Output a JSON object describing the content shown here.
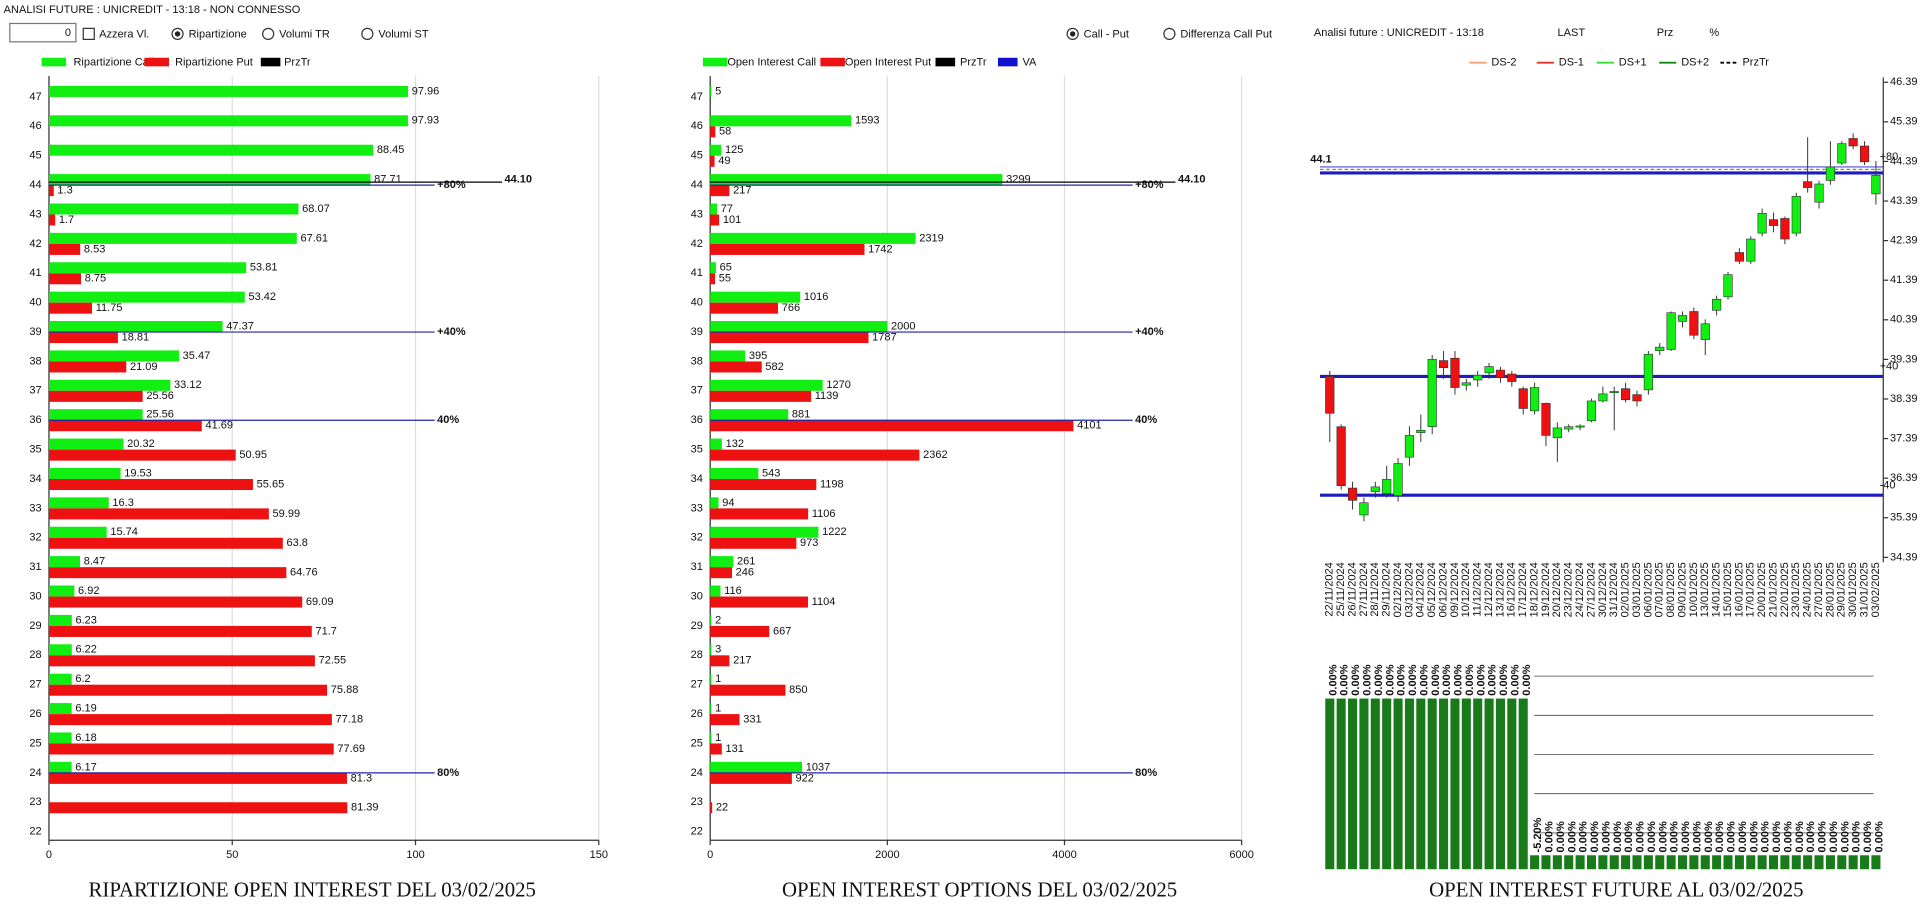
{
  "header": {
    "status": "ANALISI FUTURE : UNICREDIT - 13:18 - NON CONNESSO",
    "input": "0",
    "toolbar": [
      {
        "kind": "checkbox",
        "label": "Azzera Vl.",
        "checked": false
      },
      {
        "kind": "radio",
        "label": "Ripartizione",
        "checked": true
      },
      {
        "kind": "radio",
        "label": "Volumi TR",
        "checked": false
      },
      {
        "kind": "radio",
        "label": "Volumi ST",
        "checked": false
      },
      {
        "kind": "radio",
        "label": "Call - Put",
        "checked": true
      },
      {
        "kind": "radio",
        "label": "Differenza Call Put",
        "checked": false
      }
    ]
  },
  "chart_data": [
    {
      "type": "hbar",
      "title": "RIPARTIZIONE OPEN INTEREST DEL 03/02/2025",
      "categories": [
        47,
        46,
        45,
        44,
        43,
        42,
        41,
        40,
        39,
        38,
        37,
        36,
        35,
        34,
        33,
        32,
        31,
        30,
        29,
        28,
        27,
        26,
        25,
        24,
        23,
        22
      ],
      "series": [
        {
          "name": "Ripartizione Call",
          "color": "#11ee11",
          "values": [
            97.96,
            97.93,
            88.45,
            87.71,
            68.07,
            67.61,
            53.81,
            53.42,
            47.37,
            35.47,
            33.12,
            25.56,
            20.32,
            19.53,
            16.3,
            15.74,
            8.47,
            6.92,
            6.23,
            6.22,
            6.2,
            6.19,
            6.18,
            6.17,
            null,
            null
          ]
        },
        {
          "name": "Ripartizione Put",
          "color": "#ee1111",
          "values": [
            null,
            null,
            null,
            1.3,
            1.7,
            8.53,
            8.75,
            11.75,
            18.81,
            21.09,
            25.56,
            41.69,
            50.95,
            55.65,
            59.99,
            63.8,
            64.76,
            69.09,
            71.7,
            72.55,
            75.88,
            77.18,
            77.69,
            81.3,
            81.39,
            null
          ]
        }
      ],
      "legend_extra": [
        {
          "name": "PrzTr",
          "color": "#000000"
        }
      ],
      "xlim": [
        0,
        150
      ],
      "xticks": [
        0,
        50,
        100,
        150
      ],
      "grid": true,
      "levels": [
        {
          "at": 44,
          "label": "+80%"
        },
        {
          "at": 39,
          "label": "+40%"
        },
        {
          "at": 36,
          "label": "40%"
        },
        {
          "at": 24,
          "label": "80%"
        }
      ],
      "price_line": {
        "value": 44.1,
        "label": "44.10"
      }
    },
    {
      "type": "hbar",
      "title": "OPEN INTEREST OPTIONS DEL 03/02/2025",
      "categories": [
        47,
        46,
        45,
        44,
        43,
        42,
        41,
        40,
        39,
        38,
        37,
        36,
        35,
        34,
        33,
        32,
        31,
        30,
        29,
        28,
        27,
        26,
        25,
        24,
        23,
        22
      ],
      "series": [
        {
          "name": "Open Interest Call",
          "color": "#11ee11",
          "values": [
            5,
            1593,
            125,
            3299,
            77,
            2319,
            65,
            1016,
            2000,
            395,
            1270,
            881,
            132,
            543,
            94,
            1222,
            261,
            116,
            2,
            3,
            1,
            1,
            1,
            1037,
            null,
            null
          ]
        },
        {
          "name": "Open Interest Put",
          "color": "#ee1111",
          "values": [
            null,
            58,
            49,
            217,
            101,
            1742,
            55,
            766,
            1787,
            582,
            1139,
            4101,
            2362,
            1198,
            1106,
            973,
            246,
            1104,
            667,
            217,
            850,
            331,
            131,
            922,
            22,
            null
          ]
        }
      ],
      "legend_extra": [
        {
          "name": "PrzTr",
          "color": "#000000"
        },
        {
          "name": "VA",
          "color": "#1111cc"
        }
      ],
      "xlim": [
        0,
        6000
      ],
      "xticks": [
        0,
        2000,
        4000,
        6000
      ],
      "grid": true,
      "levels": [
        {
          "at": 44,
          "label": "+80%"
        },
        {
          "at": 39,
          "label": "+40%"
        },
        {
          "at": 36,
          "label": "40%"
        },
        {
          "at": 24,
          "label": "80%"
        }
      ],
      "price_line": {
        "value": 44.1,
        "label": "44.10"
      }
    },
    {
      "type": "candlestick",
      "header": [
        "Analisi future : UNICREDIT - 13:18",
        "LAST",
        "Prz",
        "%"
      ],
      "legend": [
        {
          "name": "DS-2",
          "color": "#f4a07a",
          "dashed": false
        },
        {
          "name": "DS-1",
          "color": "#e33030",
          "dashed": false
        },
        {
          "name": "DS+1",
          "color": "#33dd33",
          "dashed": false
        },
        {
          "name": "DS+2",
          "color": "#118811",
          "dashed": false
        },
        {
          "name": "PrzTr",
          "color": "#000000",
          "dashed": true
        }
      ],
      "up_color": "#11ee11",
      "down_color": "#ee1111",
      "dates": [
        "22/11/2024",
        "25/11/2024",
        "26/11/2024",
        "27/11/2024",
        "28/11/2024",
        "29/11/2024",
        "02/12/2024",
        "03/12/2024",
        "04/12/2024",
        "05/12/2024",
        "06/12/2024",
        "09/12/2024",
        "10/12/2024",
        "11/12/2024",
        "12/12/2024",
        "13/12/2024",
        "16/12/2024",
        "17/12/2024",
        "18/12/2024",
        "19/12/2024",
        "20/12/2024",
        "23/12/2024",
        "24/12/2024",
        "27/12/2024",
        "30/12/2024",
        "31/12/2024",
        "02/01/2025",
        "03/01/2025",
        "06/01/2025",
        "07/01/2025",
        "08/01/2025",
        "09/01/2025",
        "10/01/2025",
        "13/01/2025",
        "14/01/2025",
        "15/01/2025",
        "16/01/2025",
        "17/01/2025",
        "20/01/2025",
        "21/01/2025",
        "22/01/2025",
        "23/01/2025",
        "24/01/2025",
        "27/01/2025",
        "28/01/2025",
        "29/01/2025",
        "30/01/2025",
        "31/01/2025",
        "03/02/2025"
      ],
      "open": [
        38.96,
        37.69,
        36.14,
        35.46,
        36.05,
        36.0,
        35.95,
        36.92,
        37.54,
        37.69,
        39.36,
        39.42,
        38.74,
        38.87,
        39.05,
        39.12,
        39.02,
        38.65,
        38.09,
        38.28,
        37.41,
        37.63,
        37.68,
        37.84,
        38.34,
        38.55,
        38.65,
        38.5,
        38.62,
        39.61,
        39.64,
        40.35,
        40.6,
        39.89,
        40.63,
        40.97,
        42.09,
        41.87,
        42.58,
        42.92,
        42.95,
        42.58,
        43.88,
        43.36,
        43.91,
        44.35,
        44.97,
        44.78,
        43.57
      ],
      "high": [
        39.1,
        37.75,
        36.3,
        35.9,
        36.3,
        36.7,
        36.9,
        37.7,
        38.0,
        39.5,
        39.6,
        39.6,
        38.9,
        39.1,
        39.3,
        39.2,
        39.1,
        38.7,
        38.8,
        38.3,
        37.8,
        37.75,
        37.75,
        38.4,
        38.7,
        38.7,
        38.8,
        38.6,
        39.6,
        39.8,
        40.6,
        40.6,
        40.7,
        40.4,
        41.0,
        41.6,
        42.2,
        42.5,
        43.2,
        43.1,
        43.0,
        43.6,
        45.0,
        43.9,
        44.9,
        44.9,
        45.1,
        44.9,
        44.4
      ],
      "low": [
        37.3,
        36.1,
        35.6,
        35.3,
        35.9,
        35.9,
        35.8,
        36.7,
        37.3,
        37.5,
        38.9,
        38.5,
        38.6,
        38.7,
        38.9,
        38.8,
        38.7,
        38.0,
        38.0,
        37.2,
        36.8,
        37.55,
        37.6,
        37.8,
        38.3,
        37.6,
        38.3,
        38.2,
        38.5,
        39.5,
        39.6,
        40.2,
        39.9,
        39.5,
        40.5,
        40.9,
        41.8,
        41.8,
        42.5,
        42.6,
        42.3,
        42.5,
        43.6,
        43.2,
        43.8,
        44.3,
        44.7,
        44.3,
        43.3
      ],
      "close": [
        38.03,
        36.2,
        35.83,
        35.77,
        36.17,
        36.36,
        36.76,
        37.47,
        37.6,
        39.39,
        39.18,
        38.68,
        38.8,
        38.99,
        39.21,
        38.93,
        38.83,
        38.15,
        38.68,
        37.47,
        37.66,
        37.69,
        37.71,
        38.34,
        38.52,
        38.58,
        38.37,
        38.34,
        39.52,
        39.7,
        40.57,
        40.5,
        40.0,
        40.29,
        40.91,
        41.53,
        41.87,
        42.43,
        43.08,
        42.77,
        42.43,
        43.51,
        43.73,
        43.82,
        44.25,
        44.84,
        44.78,
        44.38,
        44.04
      ],
      "ylim": [
        34.39,
        46.39
      ],
      "yticks": [
        34.39,
        35.39,
        36.39,
        37.39,
        38.39,
        39.39,
        40.39,
        41.39,
        42.39,
        43.39,
        44.39,
        45.39,
        46.39
      ],
      "price_line": {
        "value": 44.1,
        "label": "44.1"
      },
      "levels": [
        {
          "value": 44.25,
          "label": "+80"
        },
        {
          "value": 38.96,
          "label": "+40"
        },
        {
          "value": 35.96,
          "label": "-40"
        }
      ]
    },
    {
      "type": "oi_bar",
      "title": "OPEN INTEREST FUTURE AL 03/02/2025",
      "color": "#197a19",
      "values": [
        140,
        140,
        140,
        140,
        140,
        140,
        140,
        140,
        140,
        140,
        140,
        140,
        140,
        140,
        140,
        140,
        140,
        140,
        12,
        12,
        12,
        12,
        12,
        12,
        12,
        12,
        12,
        12,
        12,
        12,
        12,
        12,
        12,
        12,
        12,
        12,
        12,
        12,
        12,
        12,
        12,
        12,
        12,
        12,
        12,
        12,
        12,
        12,
        12
      ],
      "ylim": [
        0,
        150
      ],
      "changes": [
        0,
        0,
        0,
        0,
        0,
        0,
        0,
        0,
        0,
        0,
        0,
        0,
        0,
        0,
        0,
        0,
        0,
        0,
        -5.2,
        0,
        0,
        0,
        0,
        0,
        0,
        0,
        0,
        0,
        0,
        0,
        0,
        0,
        0,
        0,
        0,
        0,
        0,
        0,
        0,
        0,
        0,
        0,
        0,
        0,
        0,
        0,
        0,
        0,
        0
      ],
      "change_labels": [
        "0.00%",
        "0.00%",
        "0.00%",
        "0.00%",
        "0.00%",
        "0.00%",
        "0.00%",
        "0.00%",
        "0.00%",
        "0.00%",
        "0.00%",
        "0.00%",
        "0.00%",
        "0.00%",
        "0.00%",
        "0.00%",
        "0.00%",
        "0.00%",
        "-5.20%",
        "0.00%",
        "0.00%",
        "0.00%",
        "0.00%",
        "0.00%",
        "0.00%",
        "0.00%",
        "0.00%",
        "0.00%",
        "0.00%",
        "0.00%",
        "0.00%",
        "0.00%",
        "0.00%",
        "0.00%",
        "0.00%",
        "0.00%",
        "0.00%",
        "0.00%",
        "0.00%",
        "0.00%",
        "0.00%",
        "0.00%",
        "0.00%",
        "0.00%",
        "0.00%",
        "0.00%",
        "0.00%",
        "0.00%",
        "0.00%"
      ]
    }
  ]
}
